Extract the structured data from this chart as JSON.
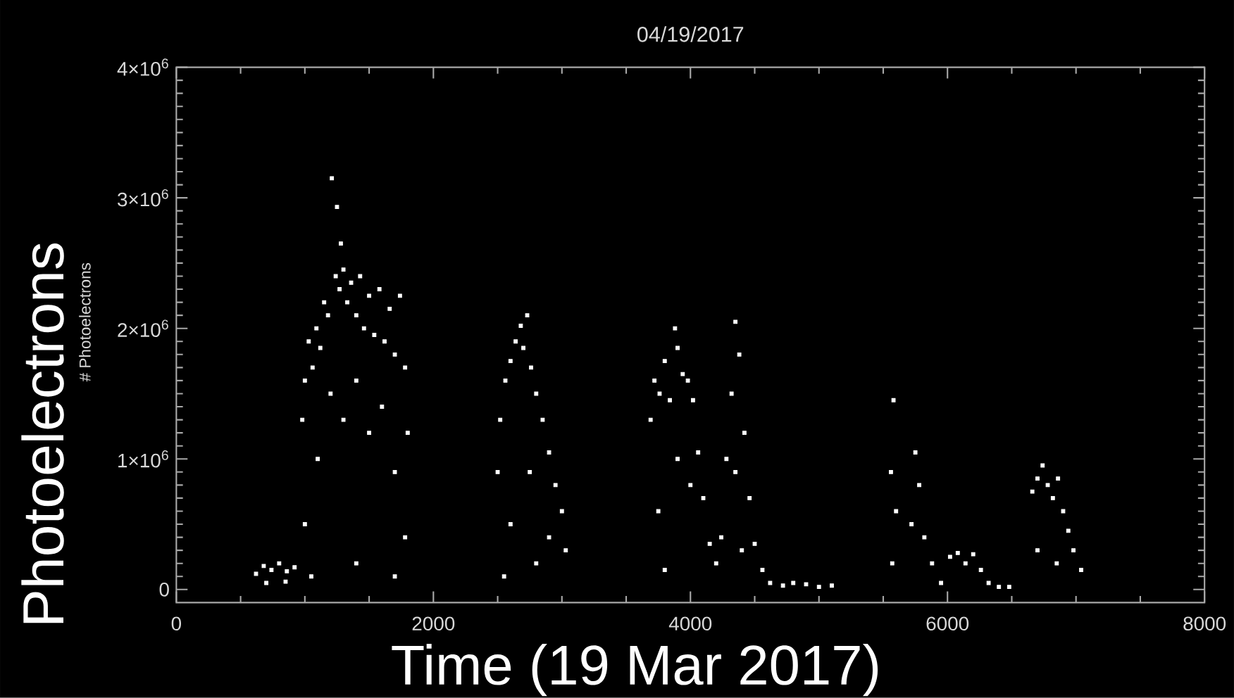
{
  "chart_data": {
    "type": "scatter",
    "title": "04/19/2017",
    "xlabel": "Time (19 Mar 2017)",
    "ylabel": "Photoelectrons",
    "annotations": [
      "# Photoelectrons"
    ],
    "color": "#ffffff",
    "marker": "square",
    "xlim": [
      0,
      8000
    ],
    "ylim": [
      -100000,
      4000000
    ],
    "xticks": [
      0,
      2000,
      4000,
      6000,
      8000
    ],
    "yticks": [
      0,
      {
        "value": 1000000,
        "label": "1×10$^{6}$"
      },
      {
        "value": 2000000,
        "label": "2×10$^{6}$"
      },
      {
        "value": 3000000,
        "label": "3×10$^{6}$"
      },
      {
        "value": 4000000,
        "label": "4×10$^{6}$"
      }
    ],
    "x": [
      620,
      680,
      740,
      800,
      860,
      920,
      700,
      850,
      980,
      1000,
      1030,
      1060,
      1090,
      1120,
      1150,
      1180,
      1210,
      1240,
      1250,
      1270,
      1280,
      1300,
      1330,
      1360,
      1400,
      1430,
      1460,
      1500,
      1540,
      1580,
      1620,
      1660,
      1700,
      1740,
      1780,
      1800,
      1000,
      1100,
      1200,
      1300,
      1400,
      1500,
      1600,
      1700,
      1780,
      1050,
      1400,
      1700,
      2500,
      2520,
      2560,
      2600,
      2640,
      2680,
      2700,
      2730,
      2760,
      2800,
      2850,
      2900,
      2950,
      3000,
      3030,
      2600,
      2750,
      2900,
      2550,
      2800,
      3690,
      3720,
      3760,
      3800,
      3840,
      3880,
      3900,
      3940,
      3980,
      4020,
      4060,
      4100,
      4150,
      4200,
      4240,
      4280,
      4320,
      4350,
      4380,
      4420,
      4460,
      4500,
      4560,
      4620,
      3750,
      3900,
      4000,
      4350,
      3800,
      4400,
      4720,
      4800,
      4900,
      5000,
      5100,
      5560,
      5580,
      5600,
      5570,
      5720,
      5750,
      5780,
      5820,
      5880,
      5950,
      6020,
      6080,
      6140,
      6200,
      6260,
      6320,
      6400,
      6480,
      6660,
      6700,
      6740,
      6780,
      6820,
      6860,
      6900,
      6940,
      6980,
      7040,
      6700,
      6850
    ],
    "values": [
      120000,
      180000,
      150000,
      200000,
      140000,
      170000,
      50000,
      60000,
      1300000,
      1600000,
      1900000,
      1700000,
      2000000,
      1850000,
      2200000,
      2100000,
      3150000,
      2400000,
      2930000,
      2300000,
      2650000,
      2450000,
      2200000,
      2350000,
      2100000,
      2400000,
      2000000,
      2250000,
      1950000,
      2300000,
      1900000,
      2150000,
      1800000,
      2250000,
      1700000,
      1200000,
      500000,
      1000000,
      1500000,
      1300000,
      1600000,
      1200000,
      1400000,
      900000,
      400000,
      100000,
      200000,
      100000,
      900000,
      1300000,
      1600000,
      1750000,
      1900000,
      2020000,
      1850000,
      2100000,
      1700000,
      1500000,
      1300000,
      1050000,
      800000,
      600000,
      300000,
      500000,
      900000,
      400000,
      100000,
      200000,
      1300000,
      1600000,
      1500000,
      1750000,
      1450000,
      2000000,
      1850000,
      1650000,
      1600000,
      1450000,
      1050000,
      700000,
      350000,
      200000,
      400000,
      1000000,
      1500000,
      2050000,
      1800000,
      1200000,
      700000,
      350000,
      150000,
      50000,
      600000,
      1000000,
      800000,
      900000,
      150000,
      300000,
      30000,
      50000,
      40000,
      20000,
      30000,
      900000,
      1450000,
      600000,
      200000,
      500000,
      1050000,
      800000,
      400000,
      200000,
      50000,
      250000,
      280000,
      200000,
      270000,
      150000,
      50000,
      20000,
      20000,
      750000,
      850000,
      950000,
      800000,
      700000,
      850000,
      600000,
      450000,
      300000,
      150000,
      300000,
      200000
    ]
  }
}
